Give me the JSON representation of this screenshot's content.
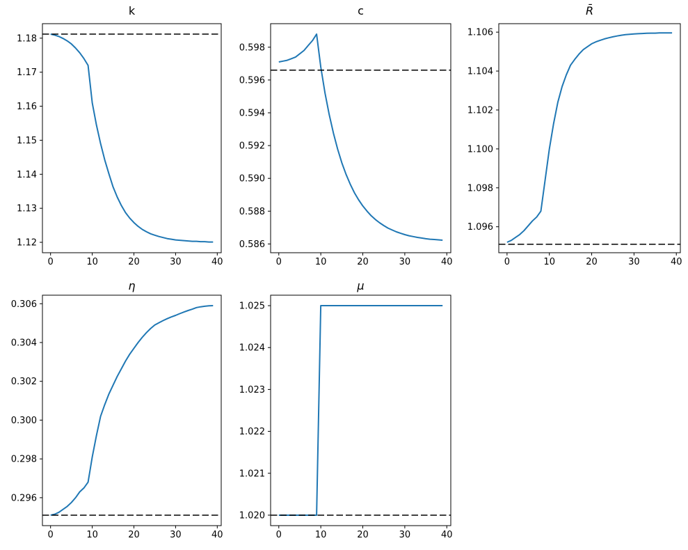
{
  "figure": {
    "background": "#ffffff",
    "grid_layout": "2 rows x 3 cols, bottom-right cell empty"
  },
  "colors": {
    "series": "#1f77b4",
    "dashed": "#000000",
    "axis": "#000000",
    "text": "#000000"
  },
  "chart_data": [
    {
      "id": "k",
      "type": "line",
      "title": "k",
      "title_italic": false,
      "xlabel": "",
      "ylabel": "",
      "grid": false,
      "legend": null,
      "x": [
        0,
        1,
        2,
        3,
        4,
        5,
        6,
        7,
        8,
        9,
        10,
        11,
        12,
        13,
        14,
        15,
        16,
        17,
        18,
        19,
        20,
        21,
        22,
        23,
        24,
        25,
        26,
        27,
        28,
        29,
        30,
        31,
        32,
        33,
        34,
        35,
        36,
        37,
        38,
        39
      ],
      "values": [
        1.1812,
        1.1809,
        1.1805,
        1.1799,
        1.1792,
        1.1783,
        1.1771,
        1.1757,
        1.174,
        1.172,
        1.161,
        1.1545,
        1.149,
        1.1442,
        1.1401,
        1.1363,
        1.1333,
        1.1308,
        1.1287,
        1.1271,
        1.1258,
        1.1247,
        1.1238,
        1.1231,
        1.1225,
        1.1221,
        1.1217,
        1.1214,
        1.1211,
        1.1209,
        1.1207,
        1.1206,
        1.1205,
        1.1204,
        1.1203,
        1.1203,
        1.1202,
        1.1202,
        1.1201,
        1.1201
      ],
      "dashed_y": 1.1812,
      "xlim": [
        -1.95,
        40.95
      ],
      "ylim": [
        1.11694,
        1.18426
      ],
      "xticks": [
        0,
        10,
        20,
        30,
        40
      ],
      "xtick_labels": [
        "0",
        "10",
        "20",
        "30",
        "40"
      ],
      "yticks": [
        1.12,
        1.13,
        1.14,
        1.15,
        1.16,
        1.17,
        1.18
      ],
      "ytick_labels": [
        "1.12",
        "1.13",
        "1.14",
        "1.15",
        "1.16",
        "1.17",
        "1.18"
      ]
    },
    {
      "id": "c",
      "type": "line",
      "title": "c",
      "title_italic": false,
      "xlabel": "",
      "ylabel": "",
      "grid": false,
      "legend": null,
      "x": [
        0,
        1,
        2,
        3,
        4,
        5,
        6,
        7,
        8,
        9,
        10,
        11,
        12,
        13,
        14,
        15,
        16,
        17,
        18,
        19,
        20,
        21,
        22,
        23,
        24,
        25,
        26,
        27,
        28,
        29,
        30,
        31,
        32,
        33,
        34,
        35,
        36,
        37,
        38,
        39
      ],
      "values": [
        0.5971,
        0.59715,
        0.5972,
        0.5973,
        0.5974,
        0.5976,
        0.5978,
        0.5981,
        0.5984,
        0.5988,
        0.5968,
        0.5952,
        0.5939,
        0.59276,
        0.59179,
        0.59096,
        0.59025,
        0.58965,
        0.58913,
        0.58869,
        0.58832,
        0.588,
        0.58772,
        0.58749,
        0.58729,
        0.58712,
        0.58697,
        0.58685,
        0.58674,
        0.58665,
        0.58657,
        0.5865,
        0.58645,
        0.5864,
        0.58636,
        0.58632,
        0.58629,
        0.58627,
        0.58625,
        0.58623
      ],
      "dashed_y": 0.5966,
      "xlim": [
        -1.95,
        40.95
      ],
      "ylim": [
        0.585465,
        0.599435
      ],
      "xticks": [
        0,
        10,
        20,
        30,
        40
      ],
      "xtick_labels": [
        "0",
        "10",
        "20",
        "30",
        "40"
      ],
      "yticks": [
        0.586,
        0.588,
        0.59,
        0.592,
        0.594,
        0.596,
        0.598
      ],
      "ytick_labels": [
        "0.586",
        "0.588",
        "0.590",
        "0.592",
        "0.594",
        "0.596",
        "0.598"
      ]
    },
    {
      "id": "Rbar",
      "type": "line",
      "title": "R̄",
      "title_italic": true,
      "xlabel": "",
      "ylabel": "",
      "grid": false,
      "legend": null,
      "x": [
        0,
        1,
        2,
        3,
        4,
        5,
        6,
        7,
        8,
        9,
        10,
        11,
        12,
        13,
        14,
        15,
        16,
        17,
        18,
        19,
        20,
        21,
        22,
        23,
        24,
        25,
        26,
        27,
        28,
        29,
        30,
        31,
        32,
        33,
        34,
        35,
        36,
        37,
        38,
        39
      ],
      "values": [
        1.0952,
        1.0953,
        1.09545,
        1.0956,
        1.0958,
        1.09605,
        1.0963,
        1.0965,
        1.0968,
        1.0984,
        1.1,
        1.1013,
        1.1024,
        1.1032,
        1.1038,
        1.1043,
        1.1046,
        1.10487,
        1.1051,
        1.10525,
        1.1054,
        1.1055,
        1.10558,
        1.10565,
        1.10571,
        1.10576,
        1.1058,
        1.10584,
        1.10587,
        1.10589,
        1.10591,
        1.10592,
        1.10593,
        1.10594,
        1.10595,
        1.10595,
        1.10596,
        1.10596,
        1.10596,
        1.10596
      ],
      "dashed_y": 1.0951,
      "xlim": [
        -1.95,
        40.95
      ],
      "ylim": [
        1.094665,
        1.106435
      ],
      "xticks": [
        0,
        10,
        20,
        30,
        40
      ],
      "xtick_labels": [
        "0",
        "10",
        "20",
        "30",
        "40"
      ],
      "yticks": [
        1.096,
        1.098,
        1.1,
        1.102,
        1.104,
        1.106
      ],
      "ytick_labels": [
        "1.096",
        "1.098",
        "1.100",
        "1.102",
        "1.104",
        "1.106"
      ]
    },
    {
      "id": "eta",
      "type": "line",
      "title": "η",
      "title_italic": true,
      "xlabel": "",
      "ylabel": "",
      "grid": false,
      "legend": null,
      "x": [
        0,
        1,
        2,
        3,
        4,
        5,
        6,
        7,
        8,
        9,
        10,
        11,
        12,
        13,
        14,
        15,
        16,
        17,
        18,
        19,
        20,
        21,
        22,
        23,
        24,
        25,
        26,
        27,
        28,
        29,
        30,
        31,
        32,
        33,
        34,
        35,
        36,
        37,
        38,
        39
      ],
      "values": [
        0.2951,
        0.29515,
        0.29525,
        0.2954,
        0.29555,
        0.29575,
        0.296,
        0.2963,
        0.2965,
        0.2968,
        0.2981,
        0.2992,
        0.3002,
        0.3008,
        0.30135,
        0.3018,
        0.30225,
        0.30265,
        0.30305,
        0.3034,
        0.3037,
        0.304,
        0.30427,
        0.30451,
        0.30472,
        0.3049,
        0.30502,
        0.30513,
        0.30523,
        0.30532,
        0.3054,
        0.30549,
        0.30557,
        0.30565,
        0.30572,
        0.3058,
        0.30584,
        0.30587,
        0.30589,
        0.3059
      ],
      "dashed_y": 0.2951,
      "xlim": [
        -1.95,
        40.95
      ],
      "ylim": [
        0.29456,
        0.30644
      ],
      "xticks": [
        0,
        10,
        20,
        30,
        40
      ],
      "xtick_labels": [
        "0",
        "10",
        "20",
        "30",
        "40"
      ],
      "yticks": [
        0.296,
        0.298,
        0.3,
        0.302,
        0.304,
        0.306
      ],
      "ytick_labels": [
        "0.296",
        "0.298",
        "0.300",
        "0.302",
        "0.304",
        "0.306"
      ]
    },
    {
      "id": "mu",
      "type": "line",
      "title": "μ",
      "title_italic": true,
      "xlabel": "",
      "ylabel": "",
      "grid": false,
      "legend": null,
      "x": [
        0,
        1,
        2,
        3,
        4,
        5,
        6,
        7,
        8,
        9,
        10,
        11,
        12,
        13,
        14,
        15,
        16,
        17,
        18,
        19,
        20,
        21,
        22,
        23,
        24,
        25,
        26,
        27,
        28,
        29,
        30,
        31,
        32,
        33,
        34,
        35,
        36,
        37,
        38,
        39
      ],
      "values": [
        1.02,
        1.02,
        1.02,
        1.02,
        1.02,
        1.02,
        1.02,
        1.02,
        1.02,
        1.02,
        1.025,
        1.025,
        1.025,
        1.025,
        1.025,
        1.025,
        1.025,
        1.025,
        1.025,
        1.025,
        1.025,
        1.025,
        1.025,
        1.025,
        1.025,
        1.025,
        1.025,
        1.025,
        1.025,
        1.025,
        1.025,
        1.025,
        1.025,
        1.025,
        1.025,
        1.025,
        1.025,
        1.025,
        1.025,
        1.025
      ],
      "dashed_y": 1.02,
      "xlim": [
        -1.95,
        40.95
      ],
      "ylim": [
        1.01975,
        1.02525
      ],
      "xticks": [
        0,
        10,
        20,
        30,
        40
      ],
      "xtick_labels": [
        "0",
        "10",
        "20",
        "30",
        "40"
      ],
      "yticks": [
        1.02,
        1.021,
        1.022,
        1.023,
        1.024,
        1.025
      ],
      "ytick_labels": [
        "1.020",
        "1.021",
        "1.022",
        "1.023",
        "1.024",
        "1.025"
      ]
    }
  ]
}
